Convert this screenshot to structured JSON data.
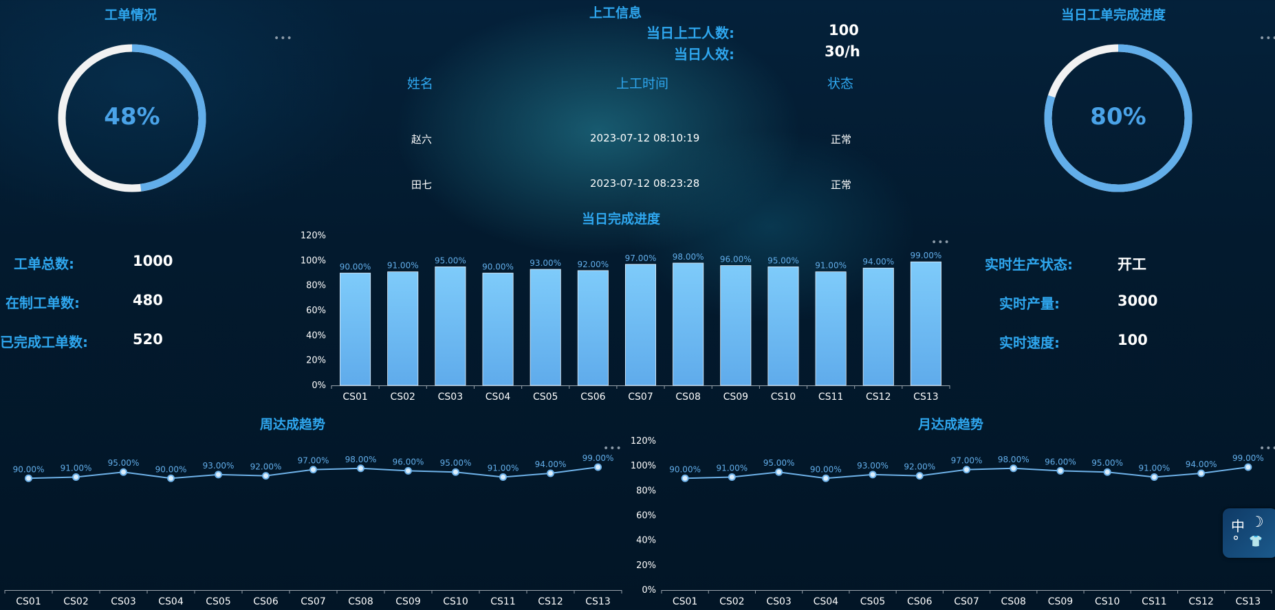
{
  "work_order": {
    "title": "工单情况",
    "percent_text": "48%",
    "percent": 48,
    "labels": {
      "total": "工单总数:",
      "in_progress": "在制工单数:",
      "completed": "已完成工单数:"
    },
    "values": {
      "total": "1000",
      "in_progress": "480",
      "completed": "520"
    }
  },
  "attendance": {
    "title": "上工信息",
    "headcount_label": "当日上工人数:",
    "headcount_value": "100",
    "efficiency_label": "当日人效:",
    "efficiency_value": "30/h",
    "columns": [
      "姓名",
      "上工时间",
      "状态"
    ],
    "rows": [
      {
        "name": "赵六",
        "time": "2023-07-12 08:10:19",
        "status": "正常"
      },
      {
        "name": "田七",
        "time": "2023-07-12 08:23:28",
        "status": "正常"
      }
    ]
  },
  "daily_completion": {
    "title": "当日工单完成进度",
    "percent_text": "80%",
    "percent": 80
  },
  "production": {
    "labels": {
      "status": "实时生产状态:",
      "output": "实时产量:",
      "speed": "实时速度:"
    },
    "values": {
      "status": "开工",
      "output": "3000",
      "speed": "100"
    }
  },
  "more_glyph": "•••",
  "ime": {
    "char": "中",
    "moon": "☽",
    "dot": "°",
    "shirt": "👕"
  },
  "colors": {
    "accent": "#2fa7ef",
    "ring": "#62aeea",
    "ring_bg": "#f2f2f2",
    "bar_top": "#7ecbfa",
    "bar_bottom": "#5fabeb",
    "line": "#6fb3ea"
  },
  "chart_data": [
    {
      "type": "bar",
      "title": "当日完成进度",
      "categories": [
        "CS01",
        "CS02",
        "CS03",
        "CS04",
        "CS05",
        "CS06",
        "CS07",
        "CS08",
        "CS09",
        "CS10",
        "CS11",
        "CS12",
        "CS13"
      ],
      "values": [
        90,
        91,
        95,
        90,
        93,
        92,
        97,
        98,
        96,
        95,
        91,
        94,
        99
      ],
      "value_labels": [
        "90.00%",
        "91.00%",
        "95.00%",
        "90.00%",
        "93.00%",
        "92.00%",
        "97.00%",
        "98.00%",
        "96.00%",
        "95.00%",
        "91.00%",
        "94.00%",
        "99.00%"
      ],
      "yticks": [
        "0%",
        "20%",
        "40%",
        "60%",
        "80%",
        "100%",
        "120%"
      ],
      "ylim": [
        0,
        120
      ],
      "grid": false
    },
    {
      "type": "line",
      "title": "周达成趋势",
      "categories": [
        "CS01",
        "CS02",
        "CS03",
        "CS04",
        "CS05",
        "CS06",
        "CS07",
        "CS08",
        "CS09",
        "CS10",
        "CS11",
        "CS12",
        "CS13"
      ],
      "values": [
        90,
        91,
        95,
        90,
        93,
        92,
        97,
        98,
        96,
        95,
        91,
        94,
        99
      ],
      "value_labels": [
        "90.00%",
        "91.00%",
        "95.00%",
        "90.00%",
        "93.00%",
        "92.00%",
        "97.00%",
        "98.00%",
        "96.00%",
        "95.00%",
        "91.00%",
        "94.00%",
        "99.00%"
      ],
      "yticks": [],
      "ylim": [
        0,
        120
      ],
      "grid": false
    },
    {
      "type": "line",
      "title": "月达成趋势",
      "categories": [
        "CS01",
        "CS02",
        "CS03",
        "CS04",
        "CS05",
        "CS06",
        "CS07",
        "CS08",
        "CS09",
        "CS10",
        "CS11",
        "CS12",
        "CS13"
      ],
      "values": [
        90,
        91,
        95,
        90,
        93,
        92,
        97,
        98,
        96,
        95,
        91,
        94,
        99
      ],
      "value_labels": [
        "90.00%",
        "91.00%",
        "95.00%",
        "90.00%",
        "93.00%",
        "92.00%",
        "97.00%",
        "98.00%",
        "96.00%",
        "95.00%",
        "91.00%",
        "94.00%",
        "99.00%"
      ],
      "yticks": [
        "0%",
        "20%",
        "40%",
        "60%",
        "80%",
        "100%",
        "120%"
      ],
      "ylim": [
        0,
        120
      ],
      "grid": false
    }
  ]
}
